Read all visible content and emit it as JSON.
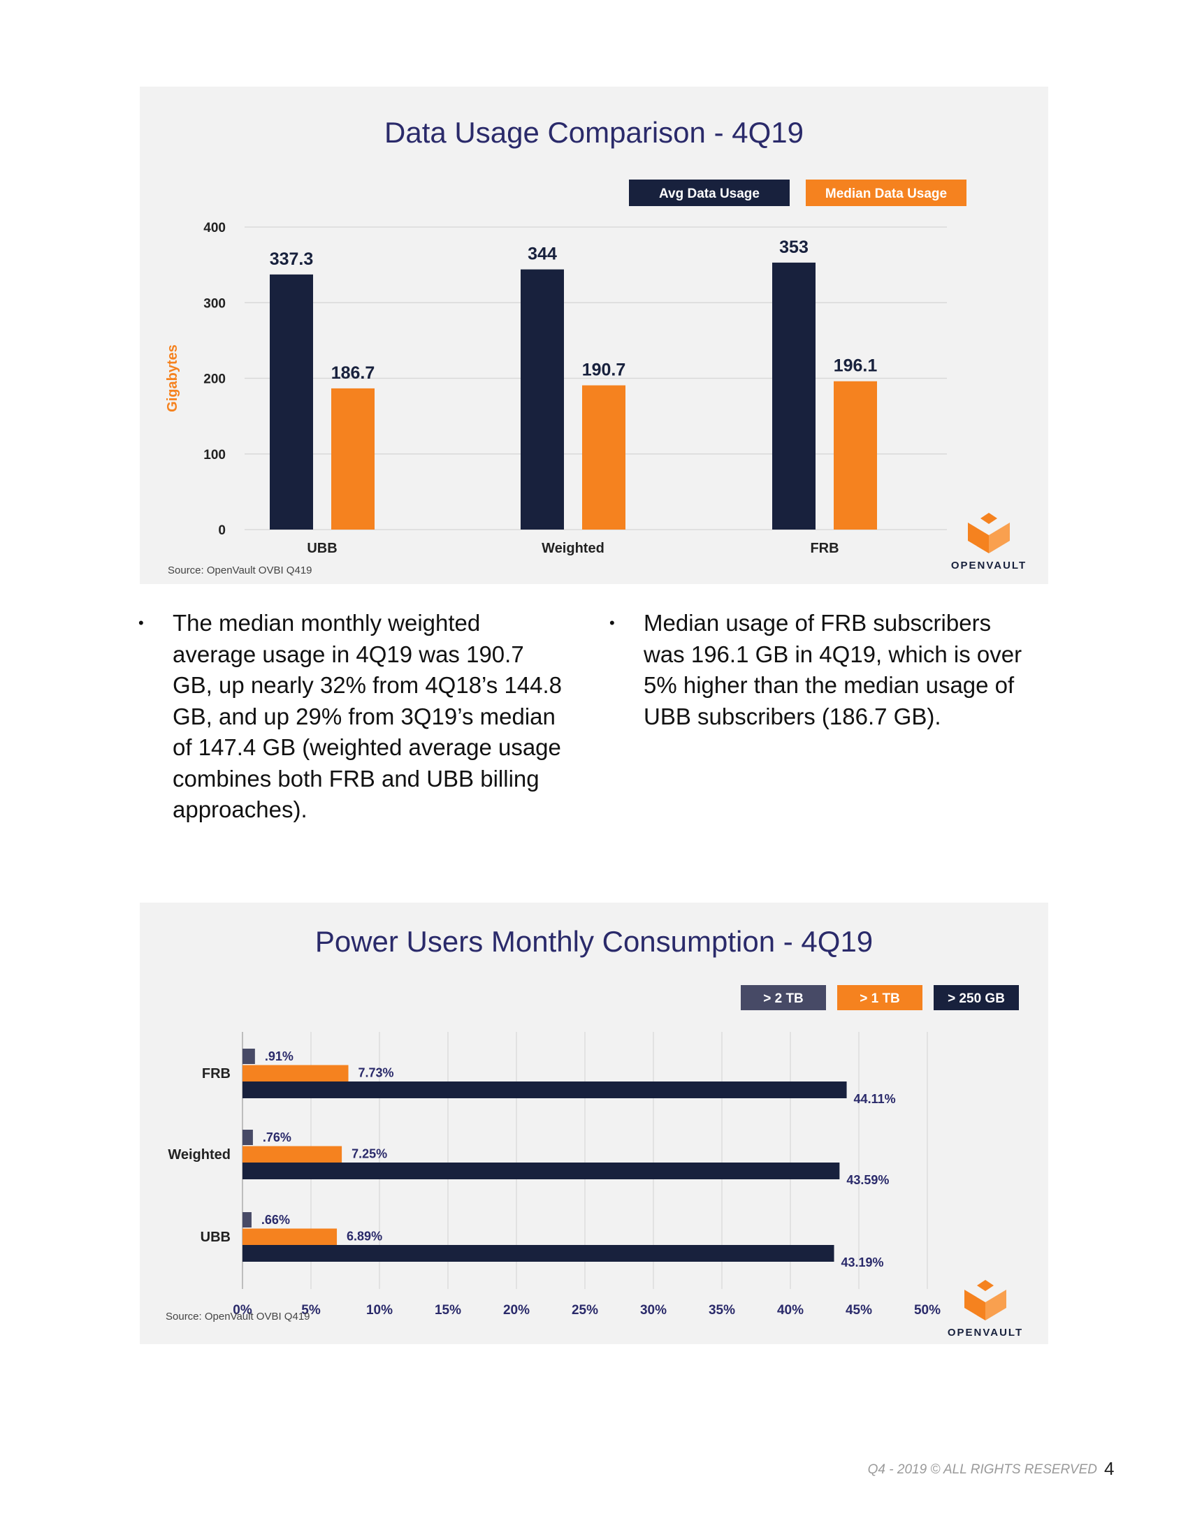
{
  "chart_data": [
    {
      "type": "bar",
      "title": "Data Usage Comparison - 4Q19",
      "ylabel": "Gigabytes",
      "xlabel": "",
      "ylim": [
        0,
        400
      ],
      "yticks": [
        0,
        100,
        200,
        300,
        400
      ],
      "ytick_labels": [
        "0",
        "100",
        "200",
        "300",
        "400"
      ],
      "categories": [
        "UBB",
        "Weighted",
        "FRB"
      ],
      "series": [
        {
          "name": "Avg Data Usage",
          "color": "#18213d",
          "values": [
            337.3,
            344,
            353
          ],
          "labels": [
            "337.3",
            "344",
            "353"
          ]
        },
        {
          "name": "Median Data Usage",
          "color": "#f5821f",
          "values": [
            186.7,
            190.7,
            196.1
          ],
          "labels": [
            "186.7",
            "190.7",
            "196.1"
          ]
        }
      ],
      "legend": "top-right",
      "source": "Source: OpenVault OVBI Q419",
      "logo_text": "OPENVAULT"
    },
    {
      "type": "bar",
      "orientation": "horizontal",
      "title": "Power Users Monthly Consumption - 4Q19",
      "xlim": [
        0,
        50
      ],
      "xticks": [
        0,
        5,
        10,
        15,
        20,
        25,
        30,
        35,
        40,
        45,
        50
      ],
      "xtick_labels": [
        "0%",
        "5%",
        "10%",
        "15%",
        "20%",
        "25%",
        "30%",
        "35%",
        "40%",
        "45%",
        "50%"
      ],
      "categories": [
        "FRB",
        "Weighted",
        "UBB"
      ],
      "series": [
        {
          "name": "> 2 TB",
          "color": "#474a66",
          "values": [
            0.91,
            0.76,
            0.66
          ],
          "labels": [
            ".91%",
            ".76%",
            ".66%"
          ]
        },
        {
          "name": "> 1 TB",
          "color": "#f5821f",
          "values": [
            7.73,
            7.25,
            6.89
          ],
          "labels": [
            "7.73%",
            "7.25%",
            "6.89%"
          ]
        },
        {
          "name": "> 250 GB",
          "color": "#18213d",
          "values": [
            44.11,
            43.59,
            43.19
          ],
          "labels": [
            "44.11%",
            "43.59%",
            "43.19%"
          ]
        }
      ],
      "legend": "top-right",
      "source": "Source: OpenVault OVBI Q419",
      "logo_text": "OPENVAULT"
    }
  ],
  "text": {
    "bullet_char": "•",
    "bullet1": "The median monthly weighted average usage in 4Q19 was 190.7 GB, up nearly 32% from 4Q18’s 144.8 GB, and up 29% from 3Q19’s median of 147.4 GB (weighted average usage combines both FRB and UBB billing approaches).",
    "bullet2": "Median usage of FRB subscribers was 196.1 GB in 4Q19, which is over 5% higher than the median usage of UBB subscribers (186.7 GB).",
    "footer": "Q4 - 2019 © ALL RIGHTS RESERVED",
    "page_number": "4"
  },
  "colors": {
    "title": "#2a2a6a",
    "dark_bar": "#18213d",
    "orange": "#f5821f",
    "slate": "#474a66"
  }
}
